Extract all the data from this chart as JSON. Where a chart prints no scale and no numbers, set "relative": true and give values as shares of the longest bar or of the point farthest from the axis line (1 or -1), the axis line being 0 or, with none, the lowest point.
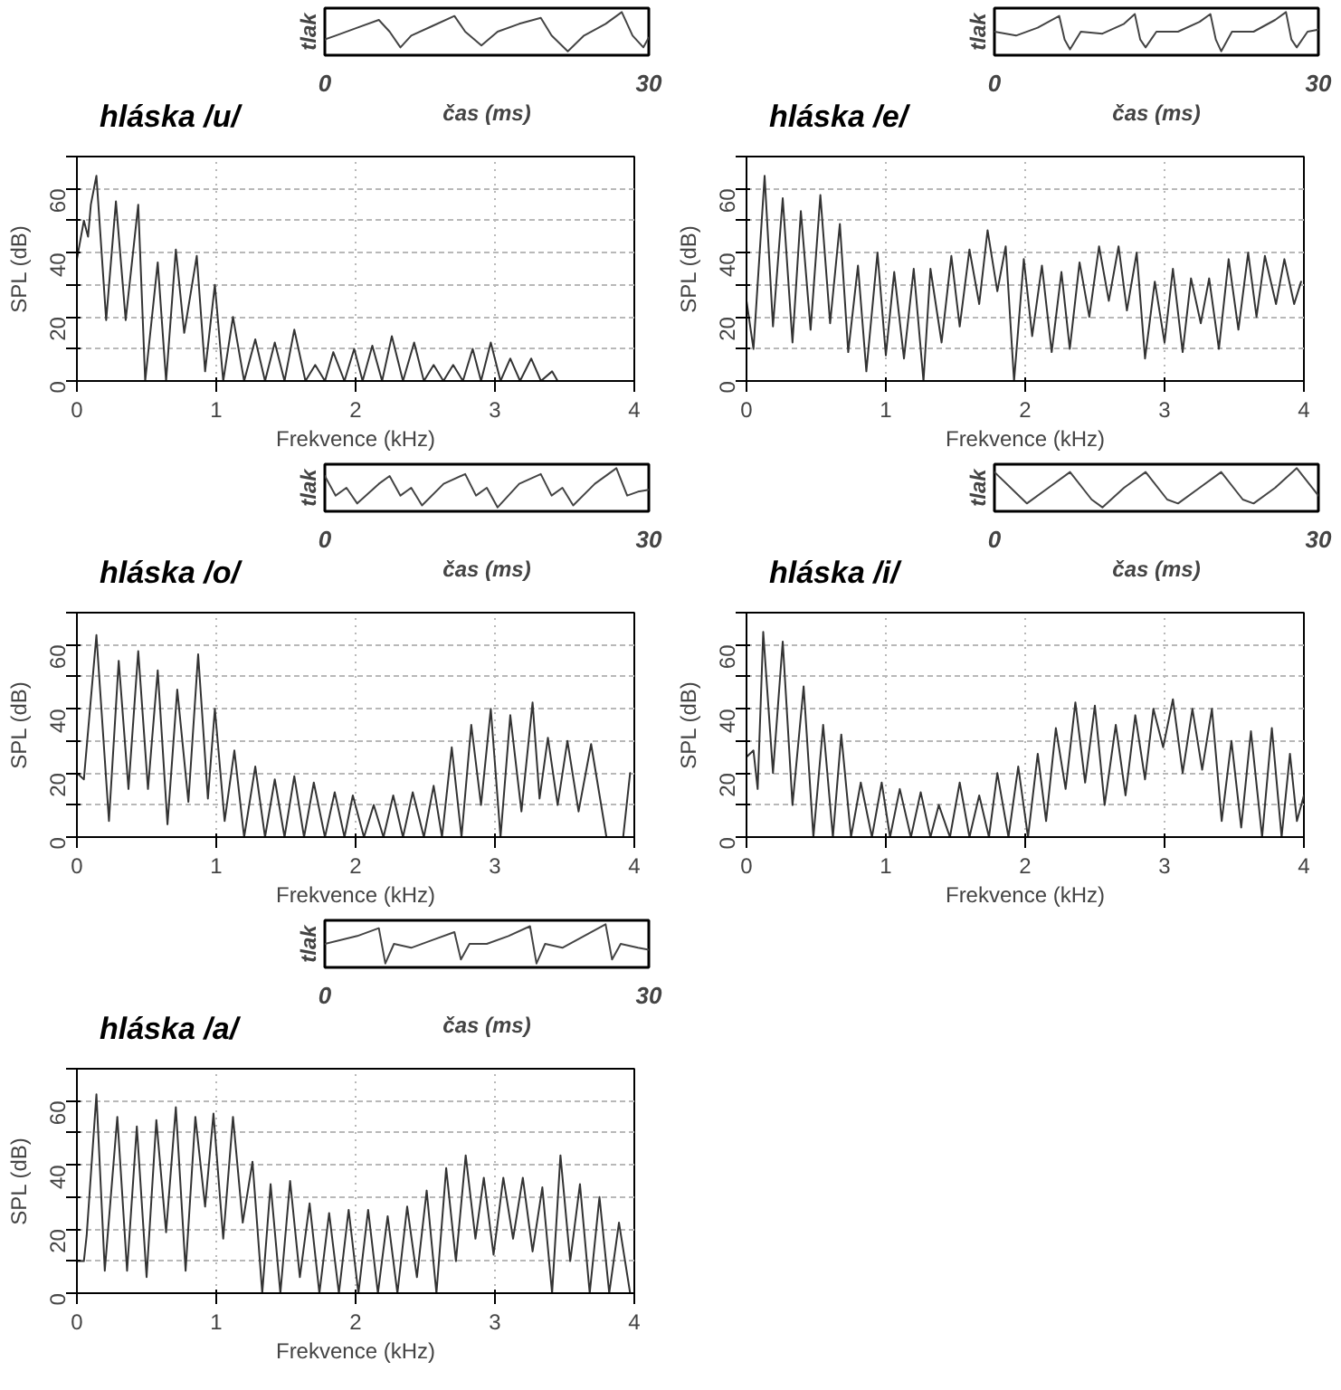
{
  "chart_data": [
    {
      "type": "line",
      "title": "hláska /u/",
      "xlabel": "Frekvence (kHz)",
      "ylabel": "SPL (dB)",
      "xlim": [
        0,
        4
      ],
      "ylim": [
        0,
        70
      ],
      "xticks": [
        0,
        1,
        2,
        3,
        4
      ],
      "yticks": [
        0,
        {
          "value": 10,
          "label": null
        },
        20,
        {
          "value": 30,
          "label": null
        },
        40,
        {
          "value": 50,
          "label": null
        },
        60,
        {
          "value": 70,
          "label": null
        }
      ],
      "grid": true,
      "series": [
        {
          "color": "#333333",
          "x": [
            0,
            0.05,
            0.08,
            0.1,
            0.14,
            0.21,
            0.28,
            0.35,
            0.44,
            0.49,
            0.58,
            0.64,
            0.71,
            0.77,
            0.86,
            0.92,
            0.99,
            1.05,
            1.12,
            1.2,
            1.28,
            1.35,
            1.42,
            1.49,
            1.56,
            1.64,
            1.71,
            1.78,
            1.84,
            1.92,
            1.99,
            2.05,
            2.12,
            2.19,
            2.26,
            2.34,
            2.42,
            2.49,
            2.56,
            2.63,
            2.7,
            2.77,
            2.84,
            2.9,
            2.97,
            3.04,
            3.11,
            3.18,
            3.26,
            3.33,
            3.41,
            3.45,
            4.0
          ],
          "values": [
            38,
            50,
            45,
            55,
            64,
            19,
            56,
            19,
            55,
            0,
            37,
            0,
            41,
            15,
            39,
            3,
            30,
            0,
            20,
            0,
            13,
            0,
            12,
            0,
            16,
            0,
            5,
            0,
            9,
            0,
            10,
            0,
            11,
            0,
            14,
            0,
            12,
            0,
            5,
            0,
            5,
            0,
            10,
            0,
            12,
            0,
            7,
            0,
            7,
            0,
            3,
            0,
            0
          ]
        }
      ]
    },
    {
      "type": "line",
      "relative": true,
      "xlabel": "čas (ms)",
      "ylabel": "tlak",
      "xlim": [
        0,
        30
      ],
      "xticks": [
        0,
        30
      ],
      "tick_labels": "x",
      "series": [
        {
          "color": "#444444",
          "x": [
            0,
            1,
            3,
            5,
            6,
            7,
            8,
            10,
            12,
            13,
            14.5,
            16,
            18,
            20,
            21,
            22.5,
            24,
            26,
            27.5,
            28.5,
            29.5,
            30
          ],
          "values": [
            0.3,
            0.4,
            0.6,
            0.8,
            0.5,
            0.1,
            0.4,
            0.65,
            0.9,
            0.5,
            0.15,
            0.5,
            0.7,
            0.85,
            0.4,
            0,
            0.4,
            0.7,
            1.0,
            0.4,
            0.1,
            0.35
          ]
        }
      ]
    },
    {
      "type": "line",
      "title": "hláska /e/",
      "xlabel": "Frekvence (kHz)",
      "ylabel": "SPL (dB)",
      "xlim": [
        0,
        4
      ],
      "ylim": [
        0,
        70
      ],
      "xticks": [
        0,
        1,
        2,
        3,
        4
      ],
      "yticks": [
        0,
        {
          "value": 10,
          "label": null
        },
        20,
        {
          "value": 30,
          "label": null
        },
        40,
        {
          "value": 50,
          "label": null
        },
        60,
        {
          "value": 70,
          "label": null
        }
      ],
      "grid": true,
      "series": [
        {
          "color": "#333333",
          "x": [
            0,
            0.05,
            0.13,
            0.19,
            0.26,
            0.33,
            0.39,
            0.46,
            0.53,
            0.6,
            0.67,
            0.73,
            0.8,
            0.86,
            0.94,
            1.0,
            1.06,
            1.13,
            1.2,
            1.27,
            1.32,
            1.4,
            1.47,
            1.53,
            1.6,
            1.67,
            1.73,
            1.8,
            1.86,
            1.92,
            1.99,
            2.05,
            2.12,
            2.19,
            2.26,
            2.32,
            2.39,
            2.46,
            2.53,
            2.6,
            2.67,
            2.73,
            2.8,
            2.86,
            2.93,
            3.0,
            3.06,
            3.13,
            3.19,
            3.26,
            3.32,
            3.39,
            3.46,
            3.53,
            3.6,
            3.66,
            3.72,
            3.8,
            3.86,
            3.93,
            3.98
          ],
          "values": [
            25,
            10,
            64,
            17,
            57,
            12,
            53,
            16,
            58,
            18,
            49,
            9,
            36,
            3,
            40,
            8,
            34,
            7,
            35,
            0,
            35,
            12,
            39,
            17,
            41,
            24,
            47,
            28,
            42,
            0,
            38,
            14,
            36,
            9,
            34,
            10,
            37,
            20,
            42,
            25,
            42,
            22,
            40,
            7,
            31,
            12,
            35,
            9,
            32,
            18,
            32,
            10,
            38,
            16,
            40,
            20,
            39,
            24,
            38,
            24,
            31
          ]
        }
      ]
    },
    {
      "type": "line",
      "relative": true,
      "xlabel": "čas (ms)",
      "ylabel": "tlak",
      "xlim": [
        0,
        30
      ],
      "xticks": [
        0,
        30
      ],
      "tick_labels": "x",
      "series": [
        {
          "color": "#444444",
          "x": [
            0,
            2,
            4,
            6,
            6.5,
            7,
            8,
            10,
            12,
            13,
            13.5,
            14,
            15,
            17,
            19,
            20,
            20.5,
            21,
            22,
            24,
            26,
            27,
            27.5,
            28,
            29,
            30
          ],
          "values": [
            0.5,
            0.4,
            0.6,
            0.9,
            0.3,
            0.05,
            0.5,
            0.45,
            0.7,
            0.95,
            0.3,
            0.1,
            0.5,
            0.5,
            0.75,
            0.95,
            0.3,
            0,
            0.5,
            0.5,
            0.8,
            1.0,
            0.3,
            0.1,
            0.5,
            0.55
          ]
        }
      ]
    },
    {
      "type": "line",
      "title": "hláska /o/",
      "xlabel": "Frekvence (kHz)",
      "ylabel": "SPL (dB)",
      "xlim": [
        0,
        4
      ],
      "ylim": [
        0,
        70
      ],
      "xticks": [
        0,
        1,
        2,
        3,
        4
      ],
      "yticks": [
        0,
        {
          "value": 10,
          "label": null
        },
        20,
        {
          "value": 30,
          "label": null
        },
        40,
        {
          "value": 50,
          "label": null
        },
        60,
        {
          "value": 70,
          "label": null
        }
      ],
      "grid": true,
      "series": [
        {
          "color": "#333333",
          "x": [
            0,
            0.05,
            0.14,
            0.23,
            0.3,
            0.37,
            0.44,
            0.51,
            0.58,
            0.65,
            0.72,
            0.8,
            0.87,
            0.94,
            0.99,
            1.06,
            1.13,
            1.2,
            1.28,
            1.35,
            1.42,
            1.49,
            1.56,
            1.63,
            1.7,
            1.78,
            1.85,
            1.92,
            1.98,
            2.06,
            2.13,
            2.2,
            2.27,
            2.34,
            2.41,
            2.49,
            2.56,
            2.62,
            2.69,
            2.76,
            2.83,
            2.9,
            2.97,
            3.04,
            3.11,
            3.19,
            3.27,
            3.32,
            3.38,
            3.45,
            3.52,
            3.6,
            3.69,
            3.8,
            3.92,
            3.97
          ],
          "values": [
            20,
            18,
            63,
            5,
            55,
            15,
            58,
            15,
            52,
            4,
            46,
            11,
            57,
            12,
            40,
            5,
            27,
            0,
            22,
            0,
            18,
            0,
            19,
            0,
            17,
            0,
            14,
            0,
            13,
            0,
            10,
            0,
            13,
            0,
            14,
            0,
            16,
            0,
            28,
            0,
            35,
            10,
            40,
            0,
            38,
            8,
            42,
            12,
            31,
            10,
            30,
            8,
            29,
            0,
            0,
            20
          ]
        }
      ]
    },
    {
      "type": "line",
      "relative": true,
      "xlabel": "čas (ms)",
      "ylabel": "tlak",
      "xlim": [
        0,
        30
      ],
      "xticks": [
        0,
        30
      ],
      "tick_labels": "x",
      "series": [
        {
          "color": "#444444",
          "x": [
            0,
            1,
            2,
            3,
            5,
            6,
            7,
            8,
            9,
            11,
            13,
            14,
            15,
            16,
            18,
            20,
            21,
            22,
            23,
            25,
            27,
            28,
            29,
            30
          ],
          "values": [
            0.8,
            0.3,
            0.5,
            0.1,
            0.6,
            0.8,
            0.3,
            0.5,
            0.05,
            0.6,
            0.85,
            0.3,
            0.5,
            0,
            0.6,
            0.85,
            0.3,
            0.5,
            0.05,
            0.6,
            1.0,
            0.3,
            0.4,
            0.45
          ]
        }
      ]
    },
    {
      "type": "line",
      "title": "hláska /i/",
      "xlabel": "Frekvence (kHz)",
      "ylabel": "SPL (dB)",
      "xlim": [
        0,
        4
      ],
      "ylim": [
        0,
        70
      ],
      "xticks": [
        0,
        1,
        2,
        3,
        4
      ],
      "yticks": [
        0,
        {
          "value": 10,
          "label": null
        },
        20,
        {
          "value": 30,
          "label": null
        },
        40,
        {
          "value": 50,
          "label": null
        },
        60,
        {
          "value": 70,
          "label": null
        }
      ],
      "grid": true,
      "series": [
        {
          "color": "#333333",
          "x": [
            0,
            0.05,
            0.08,
            0.12,
            0.19,
            0.26,
            0.33,
            0.41,
            0.48,
            0.55,
            0.62,
            0.68,
            0.75,
            0.82,
            0.9,
            0.97,
            1.03,
            1.1,
            1.18,
            1.25,
            1.32,
            1.38,
            1.46,
            1.53,
            1.6,
            1.67,
            1.74,
            1.8,
            1.88,
            1.95,
            2.02,
            2.09,
            2.15,
            2.22,
            2.29,
            2.36,
            2.43,
            2.5,
            2.57,
            2.65,
            2.72,
            2.79,
            2.86,
            2.92,
            2.99,
            3.06,
            3.13,
            3.2,
            3.27,
            3.34,
            3.41,
            3.48,
            3.55,
            3.62,
            3.7,
            3.77,
            3.84,
            3.9,
            3.95,
            4.0
          ],
          "values": [
            25,
            27,
            15,
            64,
            20,
            61,
            10,
            47,
            0,
            35,
            0,
            32,
            0,
            17,
            0,
            17,
            0,
            15,
            0,
            14,
            0,
            10,
            0,
            17,
            0,
            13,
            0,
            20,
            0,
            22,
            0,
            26,
            5,
            34,
            15,
            42,
            17,
            41,
            10,
            35,
            13,
            38,
            18,
            40,
            28,
            43,
            20,
            40,
            21,
            40,
            5,
            30,
            3,
            33,
            0,
            34,
            0,
            26,
            5,
            13
          ]
        }
      ]
    },
    {
      "type": "line",
      "relative": true,
      "xlabel": "čas (ms)",
      "ylabel": "tlak",
      "xlim": [
        0,
        30
      ],
      "xticks": [
        0,
        30
      ],
      "tick_labels": "x",
      "series": [
        {
          "color": "#444444",
          "x": [
            0,
            3,
            5,
            7,
            9,
            10,
            12,
            14,
            16,
            17,
            19,
            21,
            23,
            24,
            26,
            28,
            30
          ],
          "values": [
            0.9,
            0.1,
            0.5,
            0.9,
            0.2,
            0,
            0.5,
            0.9,
            0.2,
            0.1,
            0.5,
            0.9,
            0.2,
            0.1,
            0.5,
            1.0,
            0.3
          ]
        }
      ]
    },
    {
      "type": "line",
      "title": "hláska /a/",
      "xlabel": "Frekvence (kHz)",
      "ylabel": "SPL (dB)",
      "xlim": [
        0,
        4
      ],
      "ylim": [
        0,
        70
      ],
      "xticks": [
        0,
        1,
        2,
        3,
        4
      ],
      "yticks": [
        0,
        {
          "value": 10,
          "label": null
        },
        20,
        {
          "value": 30,
          "label": null
        },
        40,
        {
          "value": 50,
          "label": null
        },
        60,
        {
          "value": 70,
          "label": null
        }
      ],
      "grid": true,
      "series": [
        {
          "color": "#333333",
          "x": [
            0,
            0.05,
            0.07,
            0.14,
            0.2,
            0.29,
            0.36,
            0.43,
            0.5,
            0.57,
            0.64,
            0.71,
            0.78,
            0.85,
            0.92,
            0.98,
            1.05,
            1.12,
            1.19,
            1.26,
            1.33,
            1.39,
            1.46,
            1.53,
            1.6,
            1.67,
            1.74,
            1.81,
            1.88,
            1.95,
            2.02,
            2.09,
            2.16,
            2.23,
            2.3,
            2.37,
            2.44,
            2.51,
            2.58,
            2.65,
            2.72,
            2.79,
            2.86,
            2.92,
            2.99,
            3.06,
            3.13,
            3.2,
            3.27,
            3.34,
            3.41,
            3.47,
            3.54,
            3.61,
            3.68,
            3.75,
            3.82,
            3.89,
            3.97
          ],
          "values": [
            10,
            10,
            18,
            62,
            7,
            55,
            7,
            52,
            5,
            54,
            19,
            58,
            7,
            55,
            27,
            56,
            17,
            55,
            22,
            41,
            0,
            34,
            0,
            35,
            5,
            28,
            0,
            25,
            0,
            26,
            0,
            26,
            0,
            24,
            0,
            27,
            5,
            32,
            0,
            39,
            10,
            43,
            17,
            36,
            12,
            36,
            17,
            36,
            13,
            33,
            0,
            43,
            10,
            34,
            0,
            30,
            0,
            22,
            0
          ]
        }
      ]
    },
    {
      "type": "line",
      "relative": true,
      "xlabel": "čas (ms)",
      "ylabel": "tlak",
      "xlim": [
        0,
        30
      ],
      "xticks": [
        0,
        30
      ],
      "tick_labels": "x",
      "series": [
        {
          "color": "#444444",
          "x": [
            0,
            3,
            5,
            5.6,
            6.4,
            8,
            10,
            12,
            12.6,
            13.4,
            15,
            17,
            19,
            19.6,
            20.4,
            22,
            24,
            26,
            26.6,
            27.4,
            29,
            30
          ],
          "values": [
            0.5,
            0.7,
            0.9,
            0,
            0.5,
            0.4,
            0.6,
            0.8,
            0.1,
            0.5,
            0.5,
            0.7,
            0.95,
            0,
            0.5,
            0.4,
            0.7,
            1.0,
            0.1,
            0.5,
            0.4,
            0.35
          ]
        }
      ]
    }
  ]
}
